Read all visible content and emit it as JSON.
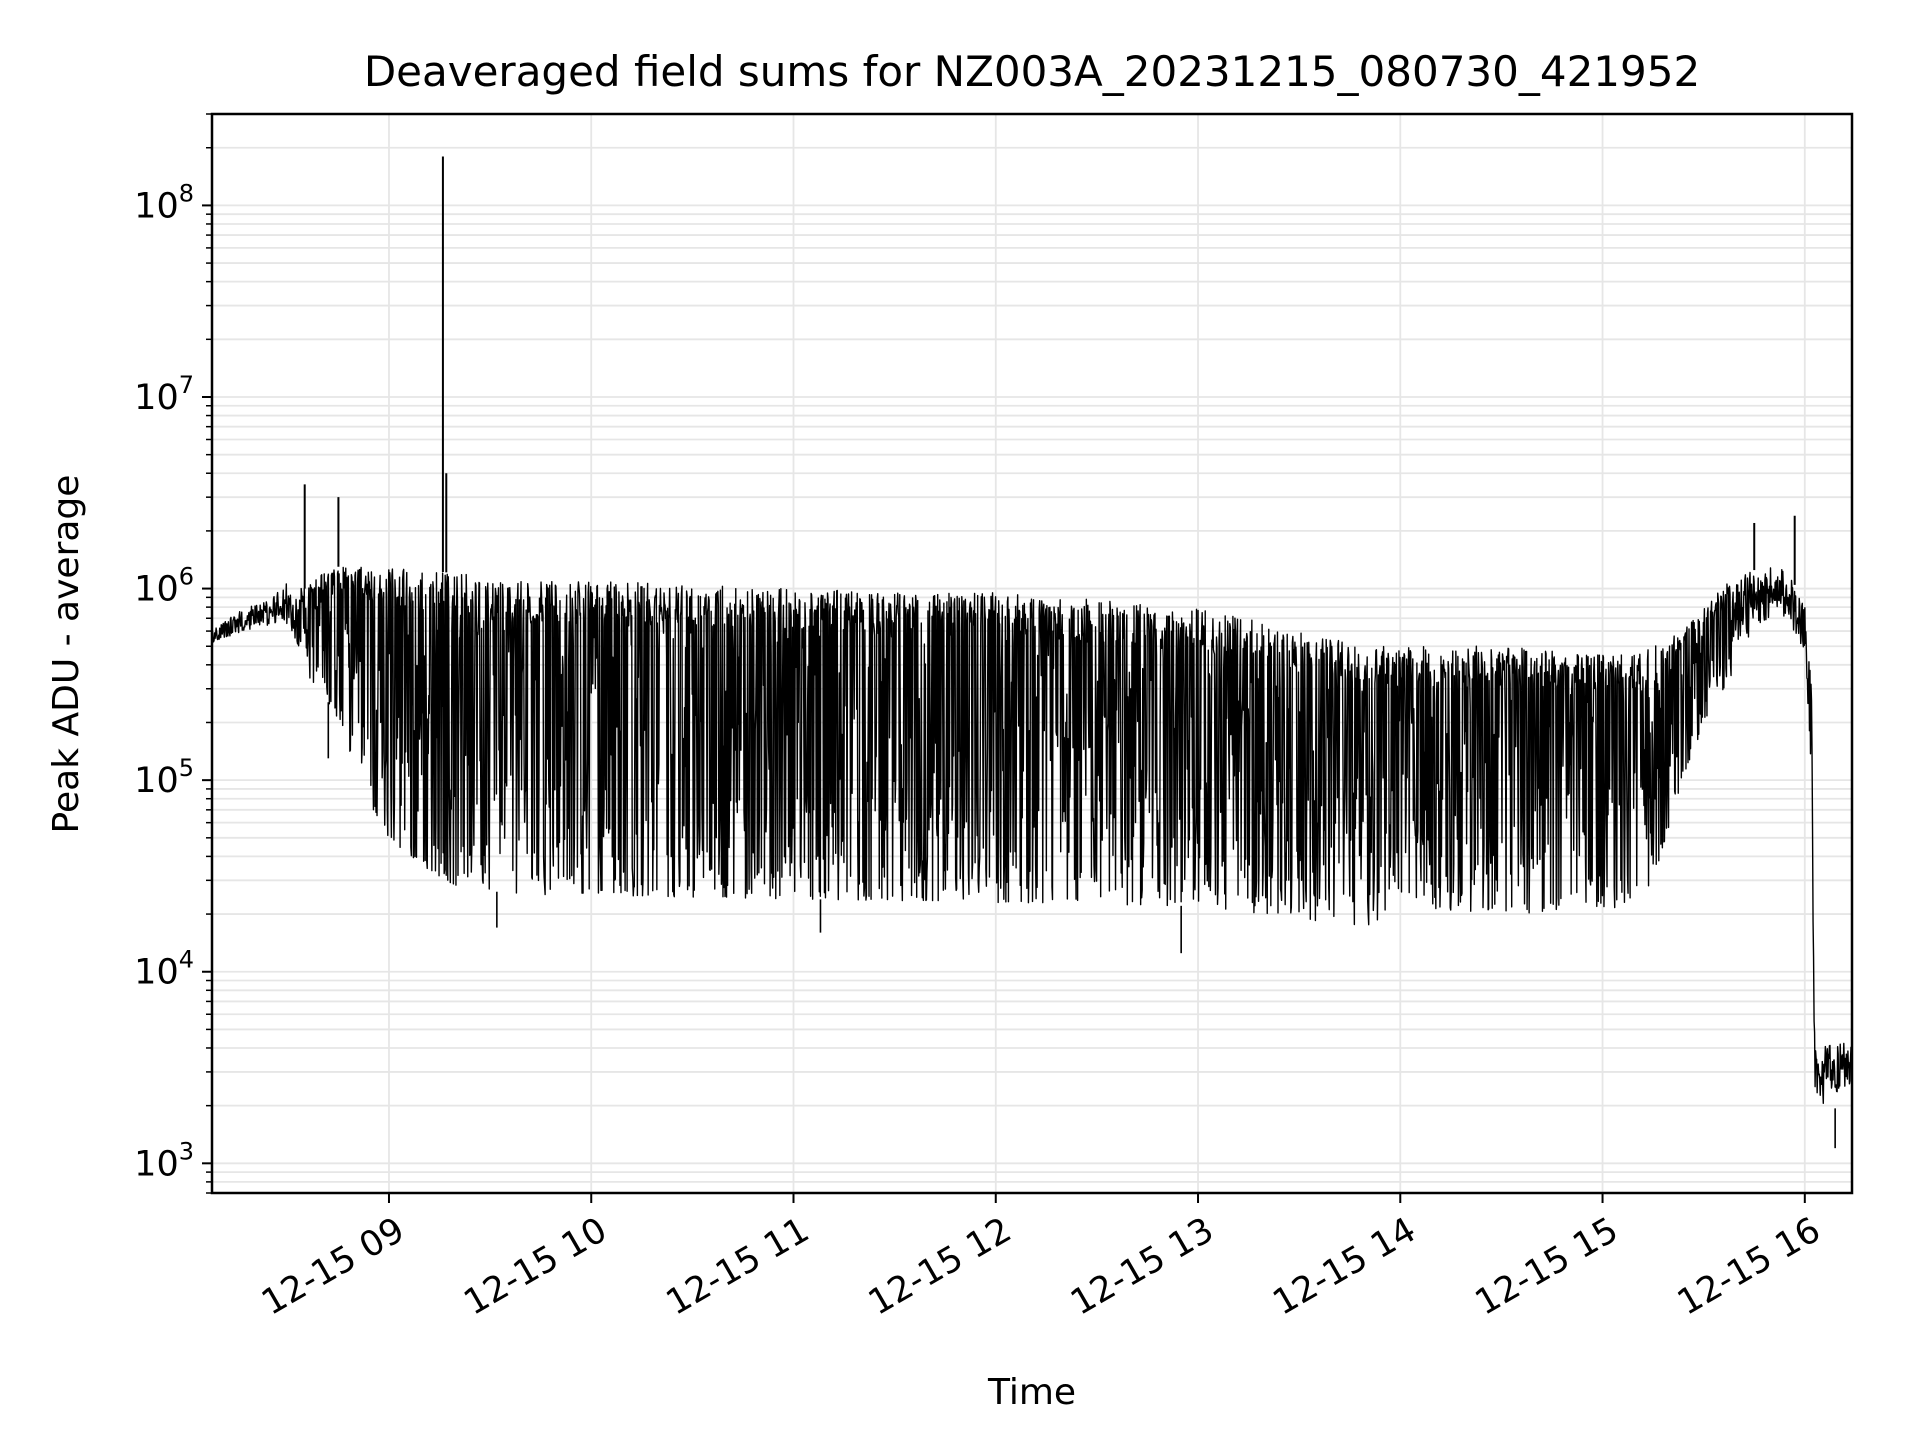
{
  "chart_data": {
    "type": "line",
    "title": "Deaveraged field sums for NZ003A_20231215_080730_421952",
    "xlabel": "Time",
    "ylabel": "Peak ADU - average",
    "y_scale": "log",
    "ylim": [
      700,
      300000000
    ],
    "xlim": [
      "2023-12-15 08:07:30",
      "2023-12-15 16:14:00"
    ],
    "grid": true,
    "line_color": "#000000",
    "grid_color": "#e6e6e6",
    "x_ticks": [
      {
        "value": "2023-12-15 09:00",
        "label": "12-15 09"
      },
      {
        "value": "2023-12-15 10:00",
        "label": "12-15 10"
      },
      {
        "value": "2023-12-15 11:00",
        "label": "12-15 11"
      },
      {
        "value": "2023-12-15 12:00",
        "label": "12-15 12"
      },
      {
        "value": "2023-12-15 13:00",
        "label": "12-15 13"
      },
      {
        "value": "2023-12-15 14:00",
        "label": "12-15 14"
      },
      {
        "value": "2023-12-15 15:00",
        "label": "12-15 15"
      },
      {
        "value": "2023-12-15 16:00",
        "label": "12-15 16"
      }
    ],
    "y_ticks": [
      {
        "value": 1000,
        "base": "10",
        "exp": "3"
      },
      {
        "value": 10000,
        "base": "10",
        "exp": "4"
      },
      {
        "value": 100000,
        "base": "10",
        "exp": "5"
      },
      {
        "value": 1000000,
        "base": "10",
        "exp": "6"
      },
      {
        "value": 10000000,
        "base": "10",
        "exp": "7"
      },
      {
        "value": 100000000,
        "base": "10",
        "exp": "8"
      }
    ],
    "series": [
      {
        "name": "",
        "envelope": {
          "x": [
            "2023-12-15 08:07:30",
            "2023-12-15 08:15",
            "2023-12-15 08:25",
            "2023-12-15 08:30",
            "2023-12-15 08:35",
            "2023-12-15 08:40",
            "2023-12-15 08:45",
            "2023-12-15 08:50",
            "2023-12-15 08:55",
            "2023-12-15 09:00",
            "2023-12-15 09:10",
            "2023-12-15 09:20",
            "2023-12-15 09:40",
            "2023-12-15 10:00",
            "2023-12-15 11:00",
            "2023-12-15 12:00",
            "2023-12-15 13:00",
            "2023-12-15 13:30",
            "2023-12-15 13:50",
            "2023-12-15 14:00",
            "2023-12-15 14:30",
            "2023-12-15 15:00",
            "2023-12-15 15:10",
            "2023-12-15 15:15",
            "2023-12-15 15:20",
            "2023-12-15 15:30",
            "2023-12-15 15:40",
            "2023-12-15 15:50",
            "2023-12-15 15:55",
            "2023-12-15 16:00",
            "2023-12-15 16:02",
            "2023-12-15 16:03",
            "2023-12-15 16:05",
            "2023-12-15 16:10",
            "2023-12-15 16:14"
          ],
          "upper": [
            600000,
            750000,
            900000,
            1100000,
            1000000,
            1200000,
            1300000,
            1300000,
            1300000,
            1300000,
            1250000,
            1200000,
            1100000,
            1100000,
            1000000,
            950000,
            800000,
            600000,
            500000,
            500000,
            500000,
            450000,
            450000,
            500000,
            550000,
            800000,
            1200000,
            1300000,
            1250000,
            800000,
            300000,
            4000,
            4000,
            4500,
            4000
          ],
          "lower": [
            500000,
            550000,
            600000,
            500000,
            350000,
            300000,
            200000,
            120000,
            70000,
            50000,
            35000,
            28000,
            25000,
            25000,
            24000,
            23000,
            22000,
            19000,
            17000,
            22000,
            20000,
            21000,
            22000,
            30000,
            60000,
            200000,
            400000,
            600000,
            600000,
            400000,
            80000,
            1600,
            1700,
            2000,
            2300
          ]
        },
        "spikes": [
          {
            "x": "2023-12-15 08:35",
            "y": 3500000
          },
          {
            "x": "2023-12-15 08:45",
            "y": 3000000
          },
          {
            "x": "2023-12-15 09:16",
            "y": 180000000
          },
          {
            "x": "2023-12-15 09:17",
            "y": 4000000
          },
          {
            "x": "2023-12-15 15:45",
            "y": 2200000
          },
          {
            "x": "2023-12-15 15:57",
            "y": 2400000
          }
        ],
        "dips": [
          {
            "x": "2023-12-15 08:42",
            "y": 130000
          },
          {
            "x": "2023-12-15 09:32",
            "y": 17000
          },
          {
            "x": "2023-12-15 11:08",
            "y": 16000
          },
          {
            "x": "2023-12-15 12:55",
            "y": 12500
          },
          {
            "x": "2023-12-15 16:09",
            "y": 1200
          }
        ]
      }
    ]
  }
}
